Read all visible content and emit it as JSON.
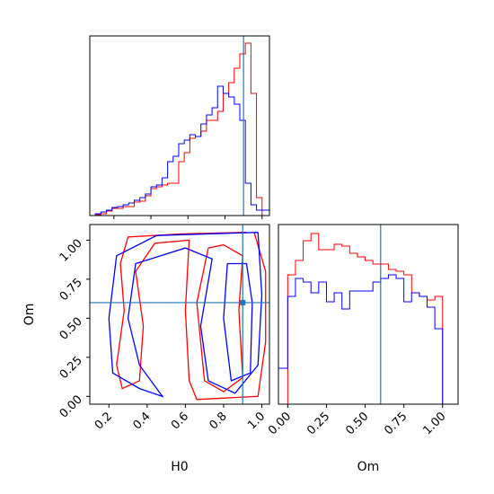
{
  "chart_data": {
    "type": "corner",
    "parameters": [
      "H0",
      "Om"
    ],
    "truths": {
      "H0": 0.9,
      "Om": 0.6
    },
    "colors": {
      "red_run": "#ff0000",
      "blue_run": "#0000ff",
      "truth": "#1f77b4"
    },
    "panels": [
      {
        "panel": "H0 marginal",
        "type": "step-histogram",
        "xlim": [
          0.07,
          1.04
        ],
        "ylim": [
          0,
          1.0
        ],
        "xticks": [
          0.2,
          0.4,
          0.6,
          0.8,
          1.0
        ],
        "series": [
          {
            "color": "#ff0000",
            "bins": [
              0.07,
              0.1,
              0.13,
              0.16,
              0.19,
              0.22,
              0.25,
              0.28,
              0.31,
              0.34,
              0.37,
              0.4,
              0.43,
              0.46,
              0.49,
              0.52,
              0.55,
              0.58,
              0.61,
              0.64,
              0.67,
              0.7,
              0.73,
              0.76,
              0.79,
              0.82,
              0.85,
              0.88,
              0.91,
              0.94,
              0.97,
              1.0,
              1.04
            ],
            "values": [
              0.0,
              0.005,
              0.01,
              0.025,
              0.04,
              0.04,
              0.05,
              0.05,
              0.075,
              0.08,
              0.11,
              0.15,
              0.16,
              0.17,
              0.18,
              0.18,
              0.3,
              0.35,
              0.43,
              0.44,
              0.47,
              0.53,
              0.53,
              0.58,
              0.68,
              0.74,
              0.82,
              0.9,
              0.96,
              0.68,
              0.1,
              0.0
            ]
          },
          {
            "color": "#0000ff",
            "bins": [
              0.07,
              0.1,
              0.13,
              0.16,
              0.19,
              0.22,
              0.25,
              0.28,
              0.31,
              0.34,
              0.37,
              0.4,
              0.43,
              0.46,
              0.49,
              0.52,
              0.55,
              0.58,
              0.61,
              0.64,
              0.67,
              0.7,
              0.73,
              0.76,
              0.79,
              0.82,
              0.85,
              0.88,
              0.91,
              0.94,
              0.97,
              1.0,
              1.04
            ],
            "values": [
              0.0,
              0.01,
              0.02,
              0.03,
              0.045,
              0.05,
              0.06,
              0.07,
              0.085,
              0.1,
              0.12,
              0.16,
              0.17,
              0.21,
              0.3,
              0.33,
              0.4,
              0.42,
              0.45,
              0.44,
              0.51,
              0.56,
              0.6,
              0.72,
              0.68,
              0.66,
              0.62,
              0.53,
              0.18,
              0.06,
              0.03,
              0.03
            ]
          }
        ]
      },
      {
        "panel": "Om marginal",
        "type": "step-histogram",
        "xlim": [
          -0.06,
          1.1
        ],
        "ylim": [
          0,
          1.0
        ],
        "xticks": [
          0.0,
          0.25,
          0.5,
          0.75,
          1.0
        ],
        "xtick_labels": [
          "0.00",
          "0.25",
          "0.50",
          "0.75",
          "1.00"
        ],
        "series": [
          {
            "color": "#ff0000",
            "bins": [
              0.0,
              0.05,
              0.1,
              0.15,
              0.2,
              0.25,
              0.3,
              0.35,
              0.4,
              0.45,
              0.5,
              0.55,
              0.6,
              0.65,
              0.7,
              0.75,
              0.8,
              0.85,
              0.9,
              0.95,
              1.0
            ],
            "values": [
              0.72,
              0.8,
              0.91,
              0.95,
              0.86,
              0.86,
              0.89,
              0.88,
              0.84,
              0.82,
              0.8,
              0.78,
              0.78,
              0.75,
              0.74,
              0.72,
              0.62,
              0.6,
              0.58,
              0.6
            ]
          },
          {
            "color": "#0000ff",
            "bins": [
              -0.06,
              0.0,
              0.05,
              0.1,
              0.15,
              0.2,
              0.25,
              0.3,
              0.35,
              0.4,
              0.45,
              0.5,
              0.55,
              0.6,
              0.65,
              0.7,
              0.75,
              0.8,
              0.85,
              0.9,
              0.95,
              1.0,
              1.1
            ],
            "values": [
              0.2,
              0.6,
              0.7,
              0.68,
              0.62,
              0.68,
              0.57,
              0.62,
              0.53,
              0.63,
              0.63,
              0.63,
              0.68,
              0.7,
              0.72,
              0.7,
              0.57,
              0.62,
              0.6,
              0.54,
              0.42,
              0.0
            ]
          }
        ]
      },
      {
        "panel": "H0 vs Om joint",
        "type": "contour",
        "xlabel": "H0",
        "ylabel": "Om",
        "xlim": [
          0.1,
          1.04
        ],
        "ylim": [
          -0.05,
          1.1
        ],
        "xticks": [
          0.2,
          0.4,
          0.6,
          0.8,
          1.0
        ],
        "yticks": [
          0.0,
          0.25,
          0.5,
          0.75,
          1.0
        ],
        "ytick_labels": [
          "0.00",
          "0.25",
          "0.50",
          "0.75",
          "1.00"
        ],
        "contours": [
          {
            "color": "#ff0000",
            "points": [
              [
                0.92,
                1.05
              ],
              [
                0.58,
                1.04
              ],
              [
                0.3,
                1.02
              ],
              [
                0.26,
                0.85
              ],
              [
                0.28,
                0.55
              ],
              [
                0.24,
                0.2
              ],
              [
                0.27,
                0.05
              ],
              [
                0.36,
                0.1
              ],
              [
                0.38,
                0.45
              ],
              [
                0.34,
                0.8
              ],
              [
                0.44,
                0.98
              ],
              [
                0.62,
                1.0
              ],
              [
                0.6,
                0.55
              ],
              [
                0.62,
                0.1
              ],
              [
                0.66,
                -0.02
              ],
              [
                0.98,
                0.0
              ],
              [
                1.02,
                0.35
              ],
              [
                1.02,
                0.8
              ],
              [
                0.96,
                1.05
              ]
            ]
          },
          {
            "color": "#ff0000",
            "points": [
              [
                0.72,
                0.95
              ],
              [
                0.66,
                0.6
              ],
              [
                0.7,
                0.1
              ],
              [
                0.8,
                0.03
              ],
              [
                0.9,
                0.12
              ],
              [
                0.88,
                0.55
              ],
              [
                0.9,
                0.9
              ],
              [
                0.8,
                0.97
              ],
              [
                0.72,
                0.95
              ]
            ]
          },
          {
            "color": "#0000ff",
            "points": [
              [
                0.98,
                1.05
              ],
              [
                0.45,
                1.03
              ],
              [
                0.24,
                0.9
              ],
              [
                0.2,
                0.5
              ],
              [
                0.22,
                0.15
              ],
              [
                0.36,
                0.05
              ],
              [
                0.48,
                0.0
              ],
              [
                0.36,
                0.2
              ],
              [
                0.3,
                0.5
              ],
              [
                0.34,
                0.85
              ],
              [
                0.6,
                0.95
              ],
              [
                0.74,
                0.88
              ],
              [
                0.68,
                0.45
              ],
              [
                0.72,
                0.1
              ],
              [
                0.86,
                0.02
              ],
              [
                0.98,
                0.2
              ],
              [
                1.0,
                0.65
              ],
              [
                0.98,
                1.05
              ]
            ]
          },
          {
            "color": "#0000ff",
            "points": [
              [
                0.82,
                0.85
              ],
              [
                0.8,
                0.5
              ],
              [
                0.84,
                0.1
              ],
              [
                0.94,
                0.15
              ],
              [
                0.95,
                0.6
              ],
              [
                0.92,
                0.85
              ],
              [
                0.82,
                0.85
              ]
            ]
          }
        ]
      }
    ]
  }
}
